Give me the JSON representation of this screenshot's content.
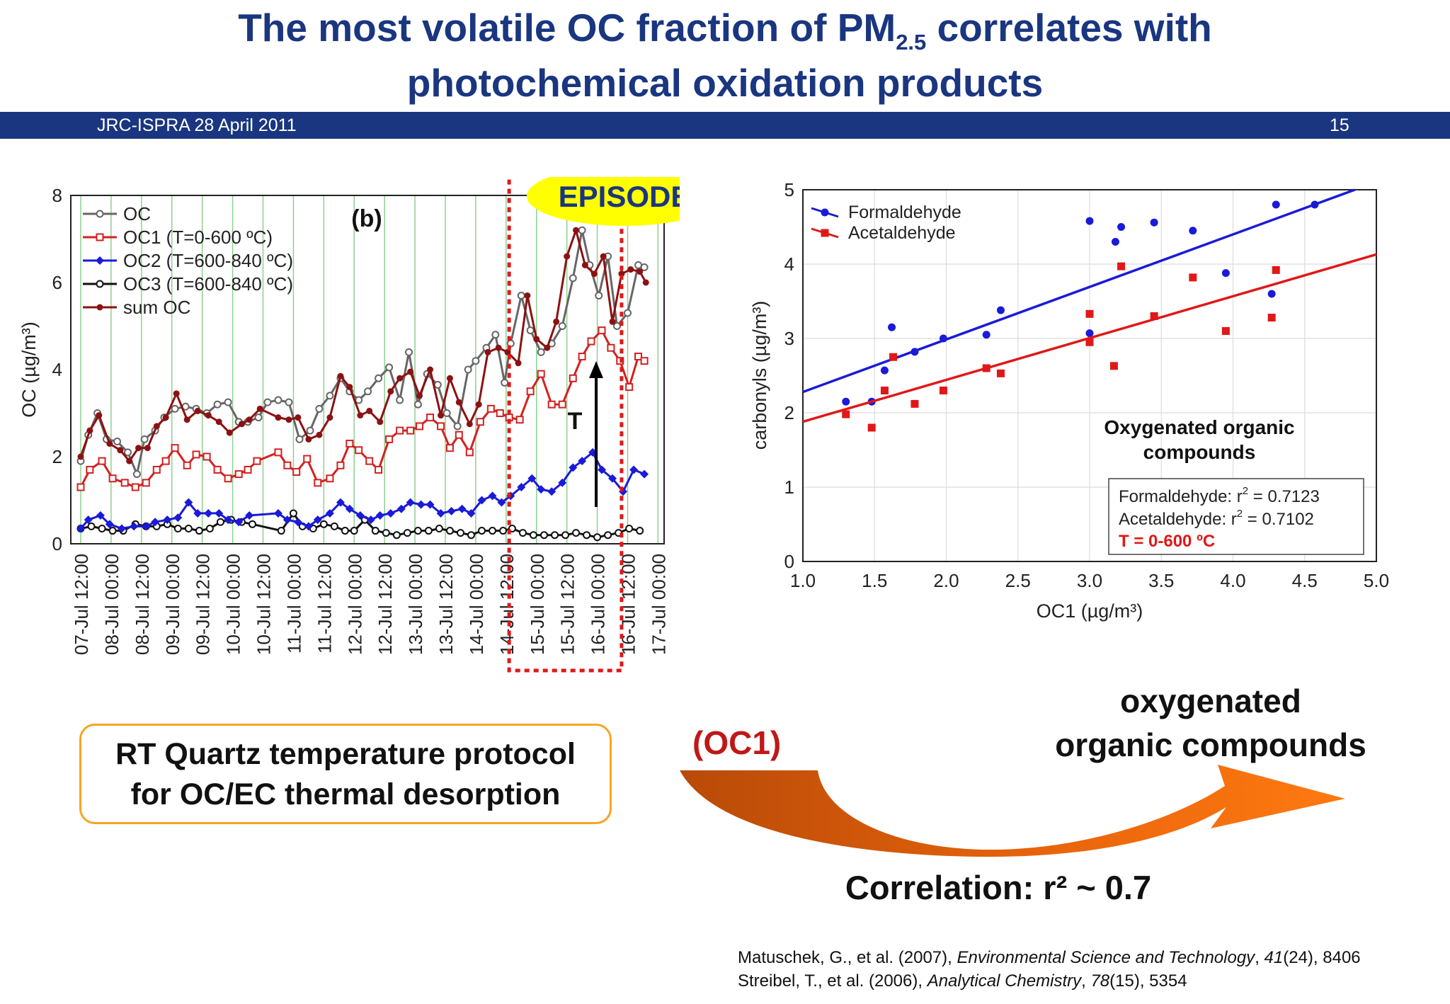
{
  "slide": {
    "title_line1_pre": "The most volatile OC fraction of PM",
    "title_line1_sub": "2.5",
    "title_line1_post": " correlates with",
    "title_line2": "photochemical oxidation products",
    "banner_left": "JRC-ISPRA 28 April 2011",
    "banner_right": "15",
    "rt_box_line1": "RT Quartz temperature protocol",
    "rt_box_line2": "for OC/EC thermal desorption",
    "oc1_label": "(OC1)",
    "ooc_line1": "oxygenated",
    "ooc_line2": "organic compounds",
    "correlation": "Correlation: r² ~ 0.7",
    "refs": [
      {
        "pre": "Matuschek, G., et al. (2007),  ",
        "journal": "Environmental Science and Technology",
        "comma": ", ",
        "vol": "41",
        "post": "(24), 8406"
      },
      {
        "pre": "Streibel, T., et al. (2006),  ",
        "journal": "Analytical Chemistry",
        "comma": ", ",
        "vol": "78",
        "post": "(15), 5354"
      }
    ],
    "colors": {
      "title": "#1a3680",
      "banner": "#1a3680",
      "box_border": "#f5a623",
      "arrow_dark": "#b84a08",
      "arrow_light": "#ff7a10",
      "oc1_label": "#c01818"
    }
  },
  "chart_data": [
    {
      "type": "line",
      "panel_label": "(b)",
      "ylabel": "OC (µg/m³)",
      "ylim": [
        0,
        8
      ],
      "yticks": [
        0,
        2,
        4,
        6,
        8
      ],
      "x_ticks": [
        "07-Jul 12:00",
        "08-Jul 00:00",
        "08-Jul 12:00",
        "09-Jul 00:00",
        "09-Jul 12:00",
        "10-Jul 00:00",
        "10-Jul 12:00",
        "11-Jul 00:00",
        "11-Jul 12:00",
        "12-Jul 00:00",
        "12-Jul 12:00",
        "13-Jul 00:00",
        "13-Jul 12:00",
        "14-Jul 00:00",
        "14-Jul 12:00",
        "15-Jul 00:00",
        "15-Jul 12:00",
        "16-Jul 00:00",
        "16-Jul 12:00",
        "17-Jul 00:00"
      ],
      "x_range": [
        0,
        19.2
      ],
      "grid": "vertical",
      "legend": "top-left",
      "episode_label": "EPISODE",
      "episode_range": [
        14.1,
        17.8
      ],
      "arrow_label": "T",
      "series": [
        {
          "name": "OC",
          "color": "#666666",
          "marker": "open-circle",
          "x": [
            0,
            0.25,
            0.55,
            0.85,
            1.2,
            1.55,
            1.85,
            2.1,
            2.45,
            2.75,
            3.1,
            3.45,
            3.8,
            4.15,
            4.5,
            4.85,
            5.2,
            5.5,
            5.85,
            6.15,
            6.5,
            6.85,
            7.2,
            7.55,
            7.85,
            8.2,
            8.55,
            8.85,
            9.15,
            9.45,
            9.8,
            10.15,
            10.5,
            10.8,
            11.1,
            11.4,
            11.75,
            12.05,
            12.4,
            12.75,
            13,
            13.35,
            13.65,
            13.95,
            14.15,
            14.5,
            14.8,
            15.15,
            15.5,
            15.85,
            16.2,
            16.5,
            16.75,
            17.05,
            17.35,
            17.65,
            18,
            18.35,
            18.55
          ],
          "y": [
            1.9,
            2.5,
            3.0,
            2.4,
            2.35,
            2.1,
            1.6,
            2.4,
            2.6,
            2.9,
            3.1,
            3.15,
            3.1,
            3.0,
            3.2,
            3.25,
            2.8,
            2.8,
            2.9,
            3.25,
            3.3,
            3.25,
            2.4,
            2.6,
            3.1,
            3.4,
            3.8,
            3.5,
            3.3,
            3.5,
            3.8,
            4.05,
            3.3,
            4.4,
            3.2,
            3.9,
            3.65,
            3.0,
            2.7,
            4.0,
            4.2,
            4.5,
            4.8,
            3.7,
            4.6,
            5.7,
            4.9,
            4.4,
            4.6,
            5.0,
            6.1,
            7.2,
            6.4,
            5.7,
            6.6,
            5.0,
            5.3,
            6.4,
            6.35
          ]
        },
        {
          "name": "OC1 (T=0-600 ºC)",
          "color": "#d42020",
          "marker": "open-square",
          "x": [
            0,
            0.3,
            0.7,
            1.05,
            1.45,
            1.8,
            2.15,
            2.5,
            2.8,
            3.1,
            3.5,
            3.8,
            4.15,
            4.5,
            4.85,
            5.2,
            5.5,
            5.8,
            6.5,
            6.8,
            7.1,
            7.45,
            7.8,
            8.2,
            8.55,
            8.85,
            9.15,
            9.5,
            9.8,
            10.15,
            10.5,
            10.85,
            11.15,
            11.5,
            11.85,
            12.15,
            12.45,
            12.8,
            13.15,
            13.5,
            13.8,
            14.1,
            14.45,
            14.8,
            15.15,
            15.5,
            15.85,
            16.2,
            16.5,
            16.8,
            17.15,
            17.45,
            17.75,
            18.05,
            18.35,
            18.55
          ],
          "y": [
            1.3,
            1.7,
            1.9,
            1.5,
            1.4,
            1.3,
            1.4,
            1.7,
            1.9,
            2.2,
            1.8,
            2.05,
            2.0,
            1.7,
            1.5,
            1.6,
            1.7,
            1.9,
            2.1,
            1.8,
            1.65,
            1.95,
            1.4,
            1.5,
            1.8,
            2.3,
            2.15,
            1.9,
            1.7,
            2.4,
            2.6,
            2.6,
            2.7,
            2.9,
            2.7,
            2.2,
            2.5,
            2.1,
            2.8,
            3.1,
            3.0,
            2.9,
            2.85,
            3.5,
            3.9,
            3.2,
            3.2,
            3.8,
            4.3,
            4.65,
            4.9,
            4.5,
            4.2,
            3.6,
            4.3,
            4.2
          ]
        },
        {
          "name": "OC2 (T=600-840 ºC)",
          "color": "#1a1ad8",
          "marker": "filled-diamond",
          "x": [
            0,
            0.25,
            0.65,
            0.95,
            1.35,
            1.75,
            2.15,
            2.45,
            2.85,
            3.2,
            3.55,
            3.85,
            4.2,
            4.55,
            4.85,
            5.2,
            5.55,
            6.5,
            6.8,
            7.15,
            7.5,
            7.8,
            8.2,
            8.55,
            8.85,
            9.2,
            9.55,
            9.85,
            10.2,
            10.55,
            10.85,
            11.2,
            11.5,
            11.85,
            12.2,
            12.55,
            12.85,
            13.2,
            13.55,
            13.85,
            14.15,
            14.5,
            14.85,
            15.15,
            15.5,
            15.85,
            16.2,
            16.5,
            16.85,
            17.15,
            17.5,
            17.85,
            18.2,
            18.55
          ],
          "y": [
            0.35,
            0.55,
            0.65,
            0.45,
            0.35,
            0.4,
            0.4,
            0.5,
            0.55,
            0.6,
            0.95,
            0.7,
            0.7,
            0.7,
            0.55,
            0.5,
            0.65,
            0.7,
            0.55,
            0.5,
            0.4,
            0.55,
            0.7,
            0.95,
            0.8,
            0.65,
            0.55,
            0.65,
            0.7,
            0.8,
            0.95,
            0.9,
            0.9,
            0.7,
            0.75,
            0.8,
            0.7,
            1.0,
            1.1,
            0.95,
            1.1,
            1.3,
            1.5,
            1.25,
            1.2,
            1.4,
            1.75,
            1.9,
            2.1,
            1.7,
            1.5,
            1.2,
            1.7,
            1.6
          ]
        },
        {
          "name": "OC3 (T=600-840 ºC)",
          "color": "#111111",
          "marker": "open-circle",
          "x": [
            0,
            0.35,
            0.7,
            1.05,
            1.4,
            1.8,
            2.15,
            2.5,
            2.85,
            3.2,
            3.55,
            3.9,
            4.25,
            4.6,
            4.95,
            5.3,
            5.65,
            6.6,
            7.0,
            7.3,
            7.65,
            8.0,
            8.35,
            8.7,
            9.0,
            9.35,
            9.7,
            10.05,
            10.4,
            10.75,
            11.1,
            11.45,
            11.8,
            12.15,
            12.5,
            12.85,
            13.2,
            13.55,
            13.9,
            14.2,
            14.55,
            14.9,
            15.25,
            15.6,
            15.95,
            16.3,
            16.65,
            17.0,
            17.35,
            17.7,
            18.05,
            18.4
          ],
          "y": [
            0.35,
            0.4,
            0.35,
            0.3,
            0.3,
            0.45,
            0.4,
            0.4,
            0.45,
            0.35,
            0.35,
            0.3,
            0.35,
            0.5,
            0.55,
            0.5,
            0.45,
            0.3,
            0.7,
            0.4,
            0.35,
            0.45,
            0.4,
            0.3,
            0.3,
            0.55,
            0.3,
            0.25,
            0.2,
            0.25,
            0.3,
            0.3,
            0.35,
            0.3,
            0.25,
            0.2,
            0.3,
            0.3,
            0.3,
            0.35,
            0.25,
            0.2,
            0.2,
            0.2,
            0.2,
            0.25,
            0.2,
            0.15,
            0.2,
            0.25,
            0.35,
            0.3
          ]
        },
        {
          "name": "sum OC",
          "color": "#8b1212",
          "marker": "filled-circle",
          "x": [
            0,
            0.3,
            0.6,
            0.95,
            1.3,
            1.6,
            1.9,
            2.2,
            2.5,
            2.8,
            3.15,
            3.5,
            3.85,
            4.2,
            4.55,
            4.9,
            5.3,
            5.55,
            5.9,
            6.5,
            6.85,
            7.15,
            7.5,
            7.85,
            8.2,
            8.55,
            8.85,
            9.2,
            9.5,
            9.85,
            10.2,
            10.5,
            10.85,
            11.15,
            11.5,
            11.85,
            12.15,
            12.45,
            12.8,
            13.1,
            13.4,
            13.75,
            14.05,
            14.4,
            14.7,
            15.0,
            15.35,
            15.65,
            16.0,
            16.3,
            16.6,
            16.9,
            17.2,
            17.5,
            17.8,
            18.1,
            18.4,
            18.6
          ],
          "y": [
            2.0,
            2.6,
            2.95,
            2.3,
            2.15,
            1.9,
            2.2,
            2.2,
            2.7,
            2.9,
            3.45,
            2.85,
            3.05,
            2.95,
            2.8,
            2.55,
            2.75,
            2.85,
            3.1,
            2.9,
            2.85,
            2.9,
            2.4,
            2.5,
            2.9,
            3.85,
            3.6,
            2.95,
            3.05,
            2.8,
            3.5,
            3.8,
            3.95,
            3.4,
            4.0,
            2.95,
            3.8,
            3.25,
            2.75,
            3.2,
            4.4,
            4.5,
            4.4,
            4.15,
            5.7,
            4.7,
            4.5,
            5.1,
            6.6,
            7.2,
            6.4,
            6.2,
            6.6,
            5.1,
            6.2,
            6.3,
            6.25,
            6.0
          ]
        }
      ]
    },
    {
      "type": "scatter",
      "xlabel": "OC1 (µg/m³)",
      "ylabel": "carbonyls (µg/m³)",
      "xlim": [
        1.0,
        5.0
      ],
      "ylim": [
        0,
        5
      ],
      "xticks": [
        "1.0",
        "1.5",
        "2.0",
        "2.5",
        "3.0",
        "3.5",
        "4.0",
        "4.5",
        "5.0"
      ],
      "yticks": [
        "0",
        "1",
        "2",
        "3",
        "4",
        "5"
      ],
      "grid": true,
      "legend": "top-left",
      "annotation": "Oxygenated organic compounds",
      "annotation_line1": "Oxygenated organic",
      "annotation_line2": "compounds",
      "stats": {
        "formaldehyde_pre": "Formaldehyde: r",
        "formaldehyde_value": " = 0.7123",
        "acetaldehyde_pre": "Acetaldehyde: r",
        "acetaldehyde_value": " = 0.7102",
        "sup": "2",
        "temperature": "T = 0-600 ºC"
      },
      "series": [
        {
          "name": "Formaldehyde",
          "color": "#1a1ad8",
          "marker": "circle",
          "x": [
            1.3,
            1.48,
            1.57,
            1.62,
            1.78,
            1.98,
            2.28,
            2.38,
            3.0,
            3.0,
            3.18,
            3.22,
            3.45,
            3.72,
            3.95,
            4.27,
            4.3,
            4.57
          ],
          "y": [
            2.15,
            2.15,
            2.57,
            3.15,
            2.82,
            3.0,
            3.05,
            3.38,
            3.07,
            4.58,
            4.3,
            4.5,
            4.56,
            4.45,
            3.88,
            3.6,
            4.8,
            4.8
          ],
          "fit": [
            [
              1.0,
              2.28
            ],
            [
              4.85,
              5.0
            ]
          ]
        },
        {
          "name": "Acetaldehyde",
          "color": "#e01818",
          "marker": "square",
          "x": [
            1.3,
            1.48,
            1.57,
            1.63,
            1.78,
            1.98,
            2.28,
            2.38,
            3.0,
            3.0,
            3.17,
            3.22,
            3.45,
            3.72,
            3.95,
            4.27,
            4.3
          ],
          "y": [
            1.98,
            1.8,
            2.3,
            2.75,
            2.12,
            2.3,
            2.6,
            2.53,
            2.95,
            3.33,
            2.63,
            3.97,
            3.3,
            3.82,
            3.1,
            3.28,
            3.92
          ],
          "fit": [
            [
              1.0,
              1.88
            ],
            [
              5.0,
              4.13
            ]
          ]
        }
      ]
    }
  ]
}
